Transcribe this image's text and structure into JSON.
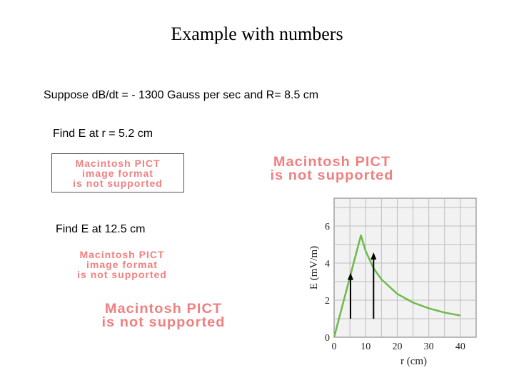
{
  "slide": {
    "title": "Example with numbers",
    "given": "Suppose dB/dt = - 1300 Gauss per sec and R= 8.5 cm",
    "question_1": "Find E at r = 5.2 cm",
    "question_2": "Find E at 12.5 cm"
  },
  "placeholder": {
    "line1": "Macintosh PICT",
    "line2": "image format",
    "line3": "is not supported"
  },
  "chart_data": {
    "type": "line",
    "xlabel": "r (cm)",
    "ylabel": "E (mV/m)",
    "xlim": [
      0,
      45
    ],
    "ylim": [
      0,
      7.5
    ],
    "x_ticks": [
      0,
      10,
      20,
      30,
      40
    ],
    "y_ticks": [
      0,
      2,
      4,
      6
    ],
    "grid": true,
    "series": [
      {
        "color": "#6dbb4a",
        "x": [
          0,
          8.5,
          10,
          12.5,
          15,
          20,
          25,
          30,
          35,
          40
        ],
        "y": [
          0,
          5.5,
          4.65,
          3.72,
          3.12,
          2.34,
          1.87,
          1.56,
          1.33,
          1.17
        ]
      }
    ],
    "arrows": [
      {
        "x": 5.2,
        "y_from": 1.0,
        "y_to": 3.4
      },
      {
        "x": 12.5,
        "y_from": 1.0,
        "y_to": 4.5
      }
    ]
  }
}
